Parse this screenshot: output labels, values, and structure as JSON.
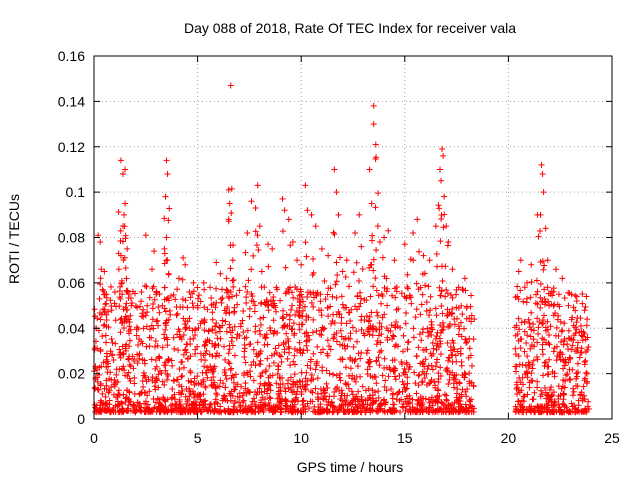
{
  "chart_data": {
    "type": "scatter",
    "title": "Day 088 of 2018, Rate Of TEC Index for receiver vala",
    "xlabel": "GPS time / hours",
    "ylabel": "ROTI / TECUs",
    "xlim": [
      0,
      25
    ],
    "ylim": [
      0,
      0.16
    ],
    "x_ticks": [
      0,
      5,
      10,
      15,
      20,
      25
    ],
    "x_tick_labels": [
      "0",
      "5",
      "10",
      "15",
      "20",
      "25"
    ],
    "y_ticks": [
      0,
      0.02,
      0.04,
      0.06,
      0.08,
      0.1,
      0.12,
      0.14,
      0.16
    ],
    "y_tick_labels": [
      "0",
      "0.02",
      "0.04",
      "0.06",
      "0.08",
      "0.1",
      "0.12",
      "0.14",
      "0.16"
    ],
    "grid": true,
    "marker": "plus",
    "marker_color": "#ff0000",
    "data_gap_hours": [
      18.4,
      20.3
    ],
    "series": [
      {
        "name": "ROTI",
        "points": [
          [
            0.2,
            0.081
          ],
          [
            0.3,
            0.078
          ],
          [
            0.35,
            0.066
          ],
          [
            0.5,
            0.065
          ],
          [
            0.6,
            0.055
          ],
          [
            0.1,
            0.04
          ],
          [
            1.3,
            0.114
          ],
          [
            1.4,
            0.108
          ],
          [
            1.5,
            0.11
          ],
          [
            1.5,
            0.095
          ],
          [
            1.45,
            0.09
          ],
          [
            1.4,
            0.085
          ],
          [
            1.6,
            0.075
          ],
          [
            1.3,
            0.072
          ],
          [
            1.2,
            0.066
          ],
          [
            1.35,
            0.06
          ],
          [
            1.6,
            0.056
          ],
          [
            1.8,
            0.05
          ],
          [
            2.5,
            0.081
          ],
          [
            2.9,
            0.074
          ],
          [
            2.8,
            0.066
          ],
          [
            3.0,
            0.055
          ],
          [
            3.5,
            0.114
          ],
          [
            3.55,
            0.108
          ],
          [
            3.45,
            0.098
          ],
          [
            3.5,
            0.08
          ],
          [
            3.4,
            0.075
          ],
          [
            3.6,
            0.064
          ],
          [
            3.3,
            0.05
          ],
          [
            4.3,
            0.071
          ],
          [
            4.1,
            0.062
          ],
          [
            4.4,
            0.068
          ],
          [
            4.6,
            0.056
          ],
          [
            4.8,
            0.06
          ],
          [
            5.0,
            0.05
          ],
          [
            5.3,
            0.06
          ],
          [
            5.6,
            0.058
          ],
          [
            5.9,
            0.069
          ],
          [
            6.1,
            0.064
          ],
          [
            6.5,
            0.101
          ],
          [
            6.55,
            0.095
          ],
          [
            6.5,
            0.088
          ],
          [
            6.6,
            0.147
          ],
          [
            6.7,
            0.07
          ],
          [
            6.4,
            0.062
          ],
          [
            7.4,
            0.082
          ],
          [
            7.6,
            0.096
          ],
          [
            7.8,
            0.093
          ],
          [
            7.9,
            0.103
          ],
          [
            8.0,
            0.085
          ],
          [
            8.1,
            0.065
          ],
          [
            8.4,
            0.077
          ],
          [
            8.6,
            0.075
          ],
          [
            8.8,
            0.058
          ],
          [
            9.1,
            0.097
          ],
          [
            9.2,
            0.092
          ],
          [
            9.4,
            0.088
          ],
          [
            9.6,
            0.078
          ],
          [
            9.8,
            0.07
          ],
          [
            10.2,
            0.103
          ],
          [
            10.3,
            0.092
          ],
          [
            10.5,
            0.09
          ],
          [
            10.7,
            0.085
          ],
          [
            10.0,
            0.068
          ],
          [
            11.0,
            0.075
          ],
          [
            11.3,
            0.072
          ],
          [
            11.6,
            0.11
          ],
          [
            11.7,
            0.1
          ],
          [
            11.8,
            0.09
          ],
          [
            12.0,
            0.065
          ],
          [
            12.2,
            0.07
          ],
          [
            12.6,
            0.082
          ],
          [
            12.8,
            0.09
          ],
          [
            12.9,
            0.076
          ],
          [
            13.3,
            0.11
          ],
          [
            13.5,
            0.138
          ],
          [
            13.5,
            0.13
          ],
          [
            13.6,
            0.121
          ],
          [
            13.4,
            0.095
          ],
          [
            13.7,
            0.085
          ],
          [
            13.8,
            0.078
          ],
          [
            14.0,
            0.08
          ],
          [
            14.2,
            0.083
          ],
          [
            14.5,
            0.07
          ],
          [
            15.0,
            0.077
          ],
          [
            15.4,
            0.082
          ],
          [
            15.6,
            0.088
          ],
          [
            15.9,
            0.072
          ],
          [
            16.2,
            0.07
          ],
          [
            16.5,
            0.085
          ],
          [
            16.7,
            0.11
          ],
          [
            16.8,
            0.119
          ],
          [
            16.85,
            0.116
          ],
          [
            16.75,
            0.105
          ],
          [
            16.9,
            0.098
          ],
          [
            17.0,
            0.085
          ],
          [
            17.1,
            0.078
          ],
          [
            17.3,
            0.066
          ],
          [
            17.6,
            0.058
          ],
          [
            17.9,
            0.062
          ],
          [
            18.2,
            0.043
          ],
          [
            20.5,
            0.065
          ],
          [
            20.6,
            0.07
          ],
          [
            20.9,
            0.06
          ],
          [
            21.1,
            0.068
          ],
          [
            21.4,
            0.09
          ],
          [
            21.6,
            0.112
          ],
          [
            21.65,
            0.108
          ],
          [
            21.7,
            0.1
          ],
          [
            21.55,
            0.09
          ],
          [
            21.8,
            0.084
          ],
          [
            21.9,
            0.07
          ],
          [
            22.3,
            0.066
          ],
          [
            22.6,
            0.062
          ],
          [
            22.9,
            0.05
          ],
          [
            23.3,
            0.052
          ],
          [
            23.5,
            0.041
          ],
          [
            23.8,
            0.044
          ]
        ],
        "band": {
          "note": "dense low-level scatter of ROTI values across all observed hours",
          "x_ranges": [
            [
              0,
              18.4
            ],
            [
              20.3,
              23.9
            ]
          ],
          "y_range": [
            0.003,
            0.04
          ],
          "count": 2400
        }
      }
    ]
  }
}
